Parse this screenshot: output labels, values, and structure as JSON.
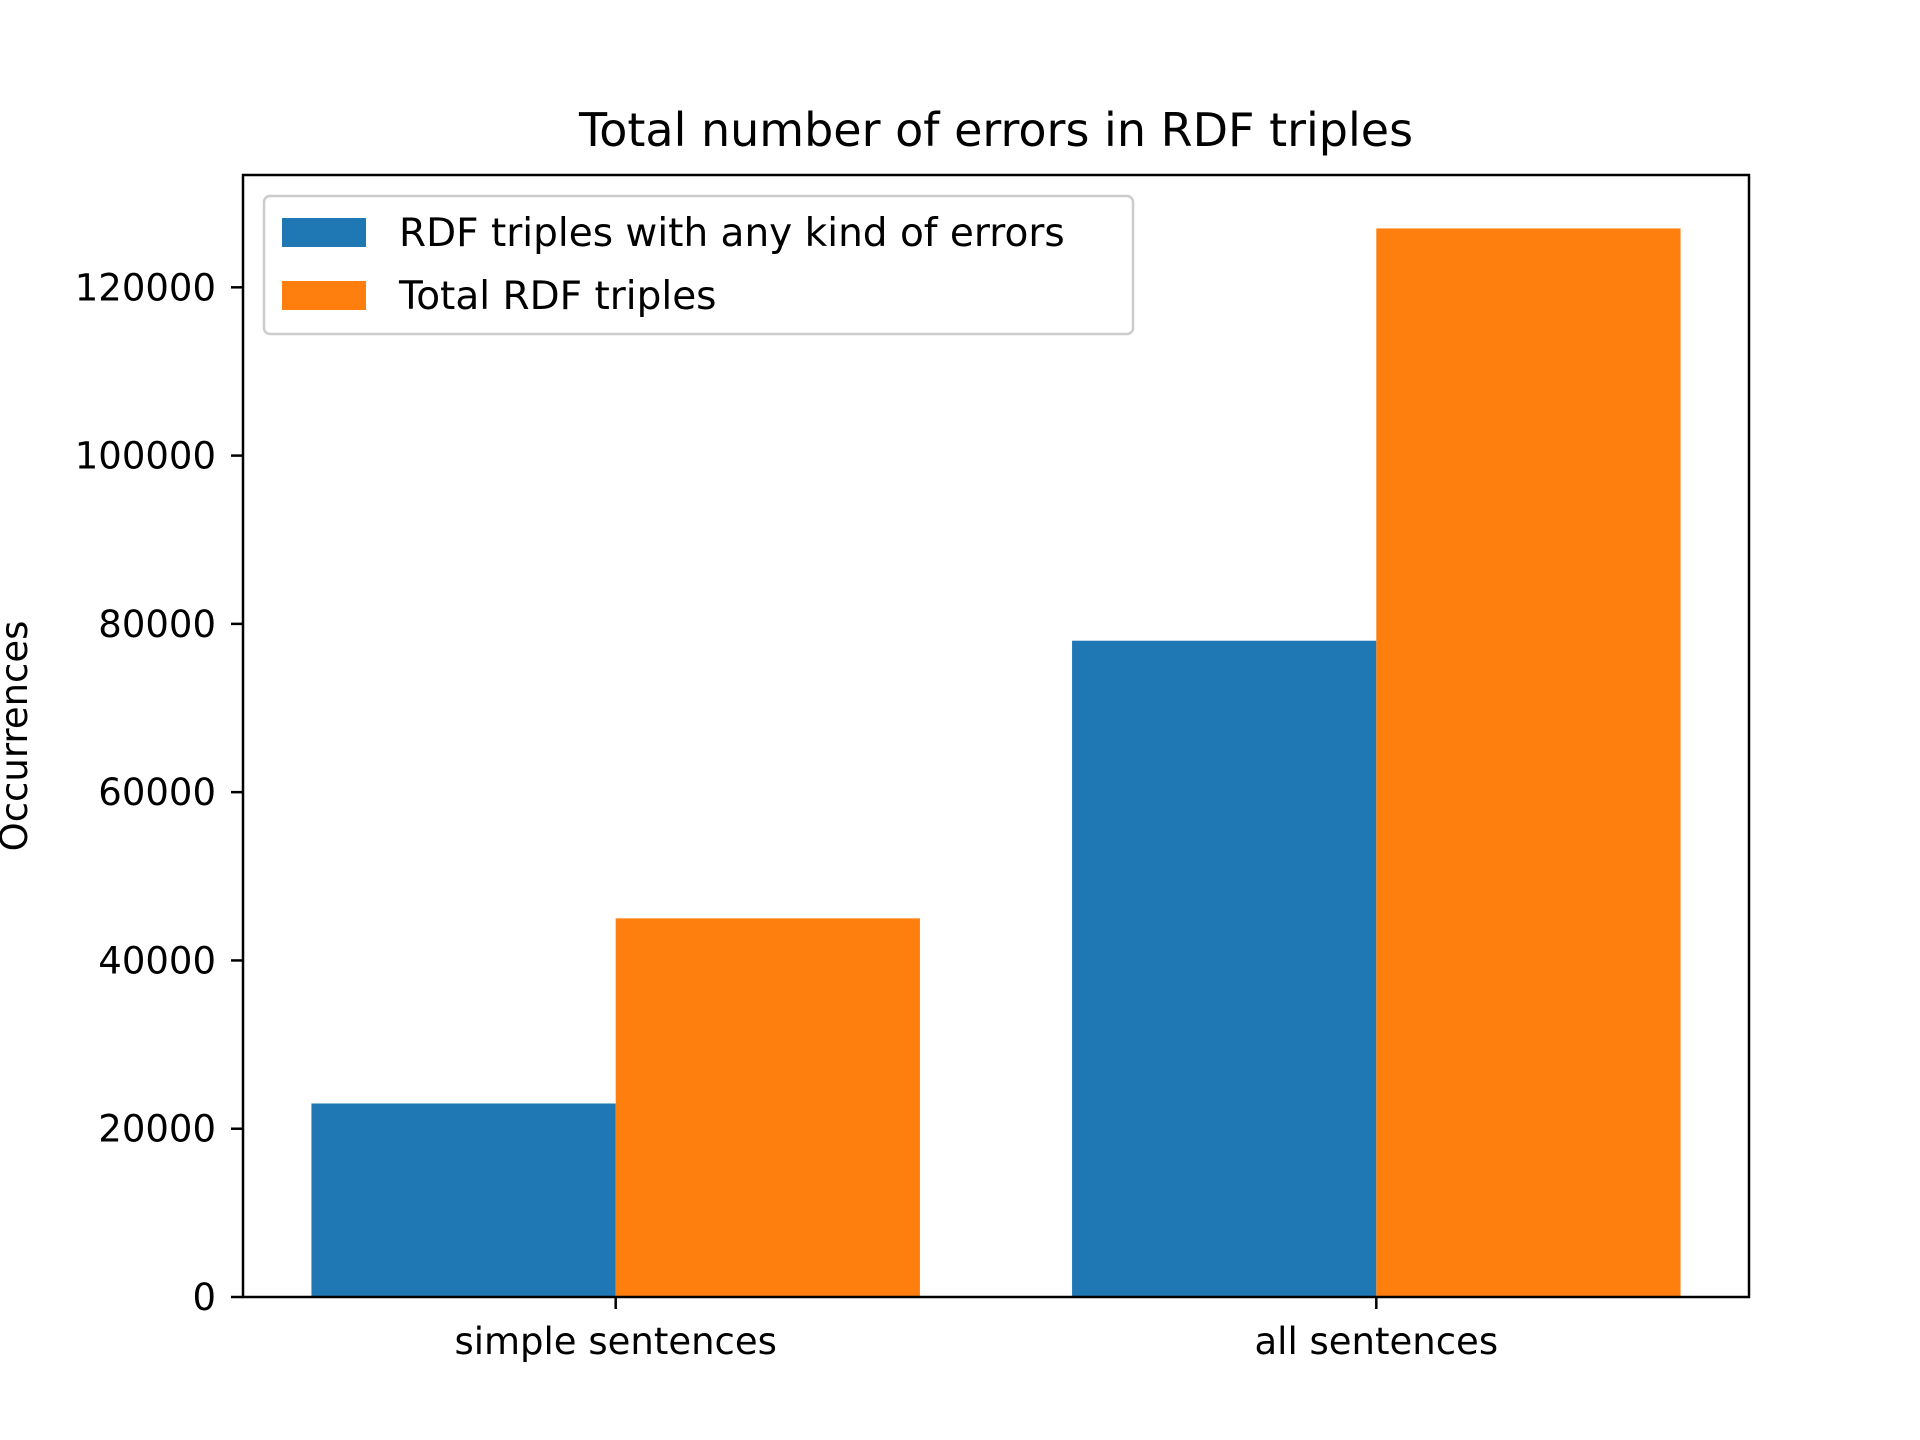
{
  "chart_data": {
    "type": "bar",
    "title": "Total number of errors in RDF triples",
    "xlabel": "",
    "ylabel": "Occurrences",
    "categories": [
      "simple sentences",
      "all sentences"
    ],
    "series": [
      {
        "name": "RDF triples with any kind of errors",
        "color": "#1f77b4",
        "values": [
          23000,
          78000
        ]
      },
      {
        "name": "Total RDF triples",
        "color": "#ff7f0e",
        "values": [
          45000,
          127000
        ]
      }
    ],
    "ylim": [
      0,
      133350
    ],
    "yticks": [
      0,
      20000,
      40000,
      60000,
      80000,
      100000,
      120000
    ],
    "grid": false,
    "legend_position": "top-left"
  }
}
